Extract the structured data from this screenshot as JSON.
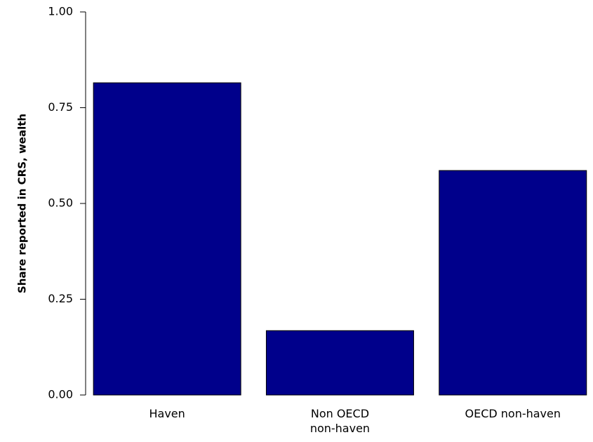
{
  "chart_data": {
    "type": "bar",
    "ylabel": "Share reported in CRS, wealth",
    "categories": [
      "Haven",
      "Non OECD\nnon-haven",
      "OECD non-haven"
    ],
    "values": [
      0.815,
      0.168,
      0.586
    ],
    "color": "#00008b",
    "ylim": [
      0,
      1
    ],
    "yticks": [
      {
        "value": 0,
        "label": "0.00"
      },
      {
        "value": 0.25,
        "label": "0.25"
      },
      {
        "value": 0.5,
        "label": "0.50"
      },
      {
        "value": 0.75,
        "label": "0.75"
      },
      {
        "value": 1,
        "label": "1.00"
      }
    ],
    "grid": false
  }
}
